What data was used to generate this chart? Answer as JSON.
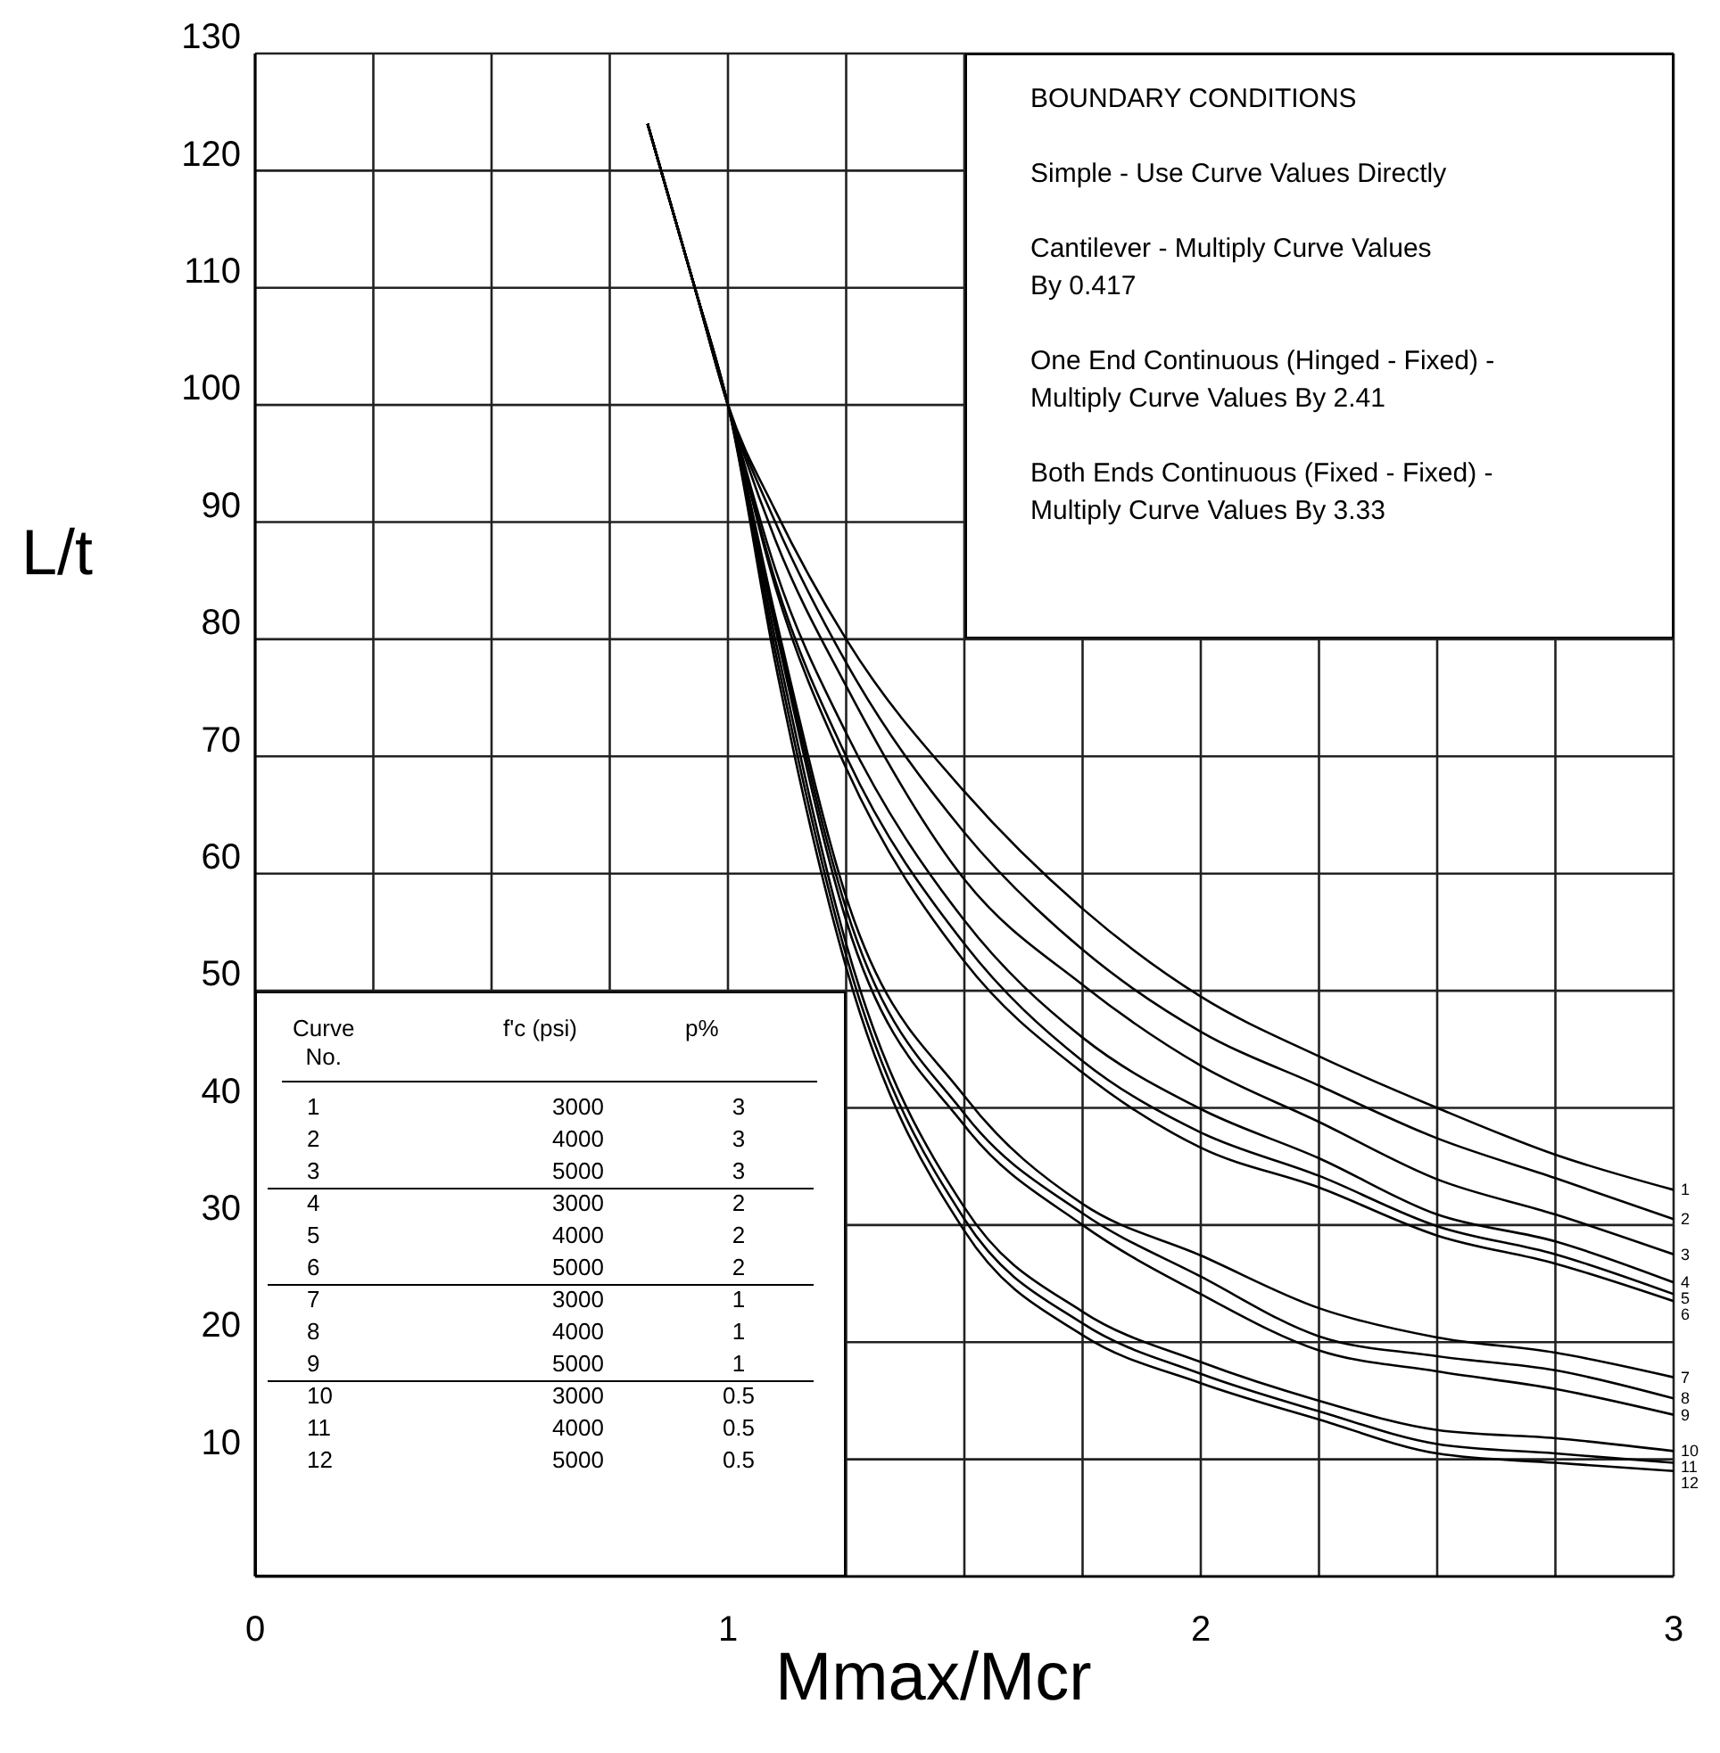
{
  "chart_data": {
    "type": "line",
    "xlabel": "Mmax/Mcr",
    "ylabel": "L/t",
    "x": [
      0.83,
      0.93,
      1,
      1.1,
      1.25,
      1.5,
      1.75,
      2,
      2.25,
      2.5,
      2.75,
      3
    ],
    "xlim": [
      0,
      3
    ],
    "xticks": [
      0,
      {
        "value": 0.25,
        "label": null
      },
      {
        "value": 0.5,
        "label": null
      },
      {
        "value": 0.75,
        "label": null
      },
      1,
      {
        "value": 1.25,
        "label": null
      },
      {
        "value": 1.5,
        "label": null
      },
      {
        "value": 1.75,
        "label": null
      },
      2,
      {
        "value": 2.25,
        "label": null
      },
      {
        "value": 2.5,
        "label": null
      },
      {
        "value": 2.75,
        "label": null
      },
      3
    ],
    "ylim": [
      0,
      130
    ],
    "yticks": [
      10,
      20,
      30,
      40,
      50,
      60,
      70,
      80,
      90,
      100,
      110,
      120,
      130
    ],
    "grid": true,
    "legend": false,
    "series": [
      {
        "name": "1",
        "color": "#000000",
        "values": [
          124,
          110,
          100,
          91,
          80,
          67,
          57,
          49.5,
          44.4,
          40,
          36,
          33
        ]
      },
      {
        "name": "2",
        "color": "#000000",
        "values": [
          124,
          110,
          100,
          90,
          78,
          63.5,
          53.5,
          46.5,
          41.9,
          37.4,
          34,
          30.5
        ]
      },
      {
        "name": "3",
        "color": "#000000",
        "values": [
          124,
          110,
          100,
          88.5,
          76,
          59.5,
          50.5,
          43.6,
          38.8,
          33.9,
          30.9,
          27.5
        ]
      },
      {
        "name": "4",
        "color": "#000000",
        "values": [
          124,
          110,
          100,
          86,
          72,
          56,
          46,
          39.9,
          35.7,
          30.9,
          28.6,
          25.1
        ]
      },
      {
        "name": "5",
        "color": "#000000",
        "values": [
          124,
          110,
          100,
          85,
          70,
          54,
          44,
          37.9,
          34.2,
          29.9,
          27.5,
          24.1
        ]
      },
      {
        "name": "6",
        "color": "#000000",
        "values": [
          124,
          110,
          100,
          84.5,
          69,
          52.5,
          43,
          36.6,
          33.2,
          29.1,
          26.7,
          23.5
        ]
      },
      {
        "name": "7",
        "color": "#000000",
        "values": [
          124,
          110,
          100,
          82,
          58,
          41,
          31.8,
          27.4,
          22.9,
          20.4,
          19.1,
          17
        ]
      },
      {
        "name": "8",
        "color": "#000000",
        "values": [
          124,
          110,
          100,
          81.5,
          57,
          39.5,
          31,
          25.6,
          20.5,
          18.8,
          17.6,
          15.2
        ]
      },
      {
        "name": "9",
        "color": "#000000",
        "values": [
          124,
          110,
          100,
          81,
          56,
          38.5,
          30,
          24.1,
          19.3,
          17.5,
          16,
          13.8
        ]
      },
      {
        "name": "10",
        "color": "#000000",
        "values": [
          124,
          110,
          100,
          80,
          54,
          31.5,
          22.6,
          18.3,
          15,
          12.5,
          11.8,
          10.7
        ]
      },
      {
        "name": "11",
        "color": "#000000",
        "values": [
          124,
          110,
          100,
          79,
          53,
          30.5,
          21.6,
          17.3,
          14.1,
          11.3,
          10.5,
          9.7
        ]
      },
      {
        "name": "12",
        "color": "#000000",
        "values": [
          124,
          110,
          100,
          78,
          52,
          29.5,
          20.6,
          16.5,
          13.4,
          10.5,
          9.7,
          9
        ]
      }
    ],
    "annotations": [
      "BOUNDARY CONDITIONS\n\nSimple - Use Curve Values Directly\n\nCantilever - Multiply Curve Values\nBy 0.417\n\nOne End Continuous (Hinged - Fixed) -\nMultiply Curve Values By 2.41\n\nBoth Ends Continuous (Fixed - Fixed) -\nMultiply Curve Values By 3.33",
      "Curve\nNo.",
      "f'c (psi)",
      "p%",
      "1",
      "3000",
      "3",
      "2",
      "4000",
      "3",
      "3",
      "5000",
      "3",
      "4",
      "3000",
      "2",
      "5",
      "4000",
      "2",
      "6",
      "5000",
      "2",
      "7",
      "3000",
      "1",
      "8",
      "4000",
      "1",
      "9",
      "5000",
      "1",
      "10",
      "3000",
      "0.5",
      "11",
      "4000",
      "0.5",
      "12",
      "5000",
      "0.5"
    ]
  }
}
